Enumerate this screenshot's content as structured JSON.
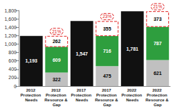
{
  "chart_data": {
    "type": "bar",
    "stacked": true,
    "data_labels": true,
    "grid": false,
    "categories": [
      "2012 Protection Needs",
      "2012 Protection Resource & Gap",
      "2017 Protection Needs",
      "2017 Protection Resource & Gap",
      "2022 Protection Needs",
      "2022 Protection Resource & Gap"
    ],
    "series": [
      {
        "color": "#111111",
        "values": [
          1193,
          null,
          1547,
          null,
          1781,
          null
        ],
        "value_labels": [
          "1,193",
          null,
          "1,547",
          null,
          "1,781",
          null
        ]
      },
      {
        "color": "#c0c0c0",
        "values": [
          null,
          322,
          null,
          475,
          null,
          621
        ]
      },
      {
        "color": "#2e9e3e",
        "values": [
          null,
          609,
          null,
          716,
          null,
          787
        ]
      },
      {
        "color": "#ffffff",
        "line_style": "dashed",
        "values": [
          null,
          262,
          null,
          355,
          null,
          373
        ]
      }
    ],
    "annotations": [
      null,
      "21%",
      null,
      "23%",
      null,
      "21%"
    ],
    "ylim": [
      0,
      1800
    ],
    "yticks": [
      0,
      200,
      400,
      600,
      800,
      {
        "value": 1000,
        "label": "1,000"
      },
      {
        "value": 1200,
        "label": "1,200"
      },
      {
        "value": 1400,
        "label": "1,400"
      },
      {
        "value": 1600,
        "label": "1,600"
      },
      {
        "value": 1800,
        "label": "1,800"
      }
    ]
  }
}
